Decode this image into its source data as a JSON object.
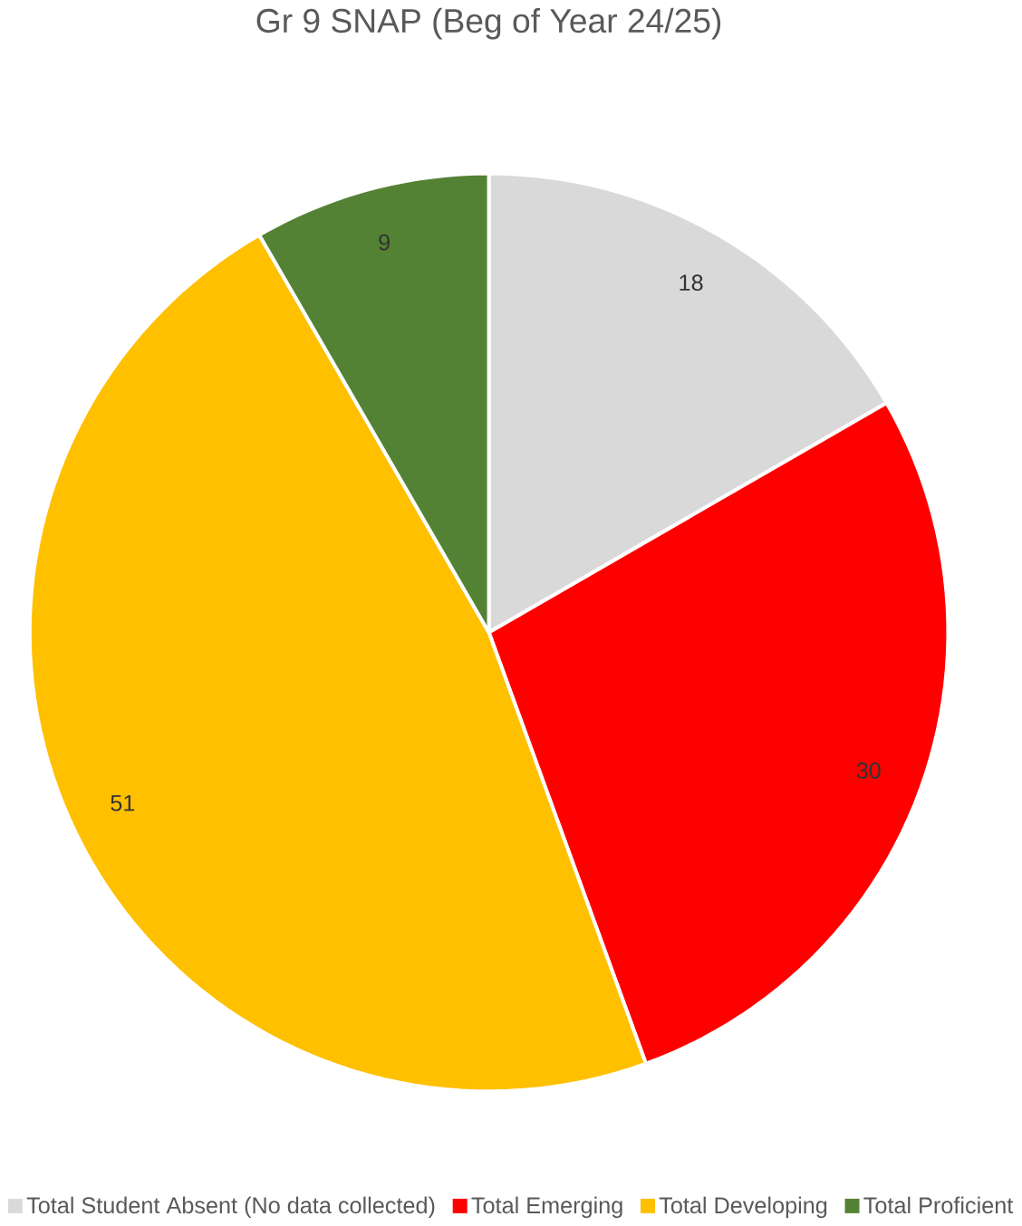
{
  "chart_data": {
    "type": "pie",
    "title": "Gr 9 SNAP (Beg of Year 24/25)",
    "categories": [
      "Total Student Absent (No data collected)",
      "Total Emerging",
      "Total Developing",
      "Total Proficient"
    ],
    "values": [
      18,
      30,
      51,
      9
    ],
    "colors": [
      "#d9d9d9",
      "#ff0000",
      "#ffc000",
      "#548235"
    ],
    "data_labels": true,
    "legend": "bottom"
  }
}
